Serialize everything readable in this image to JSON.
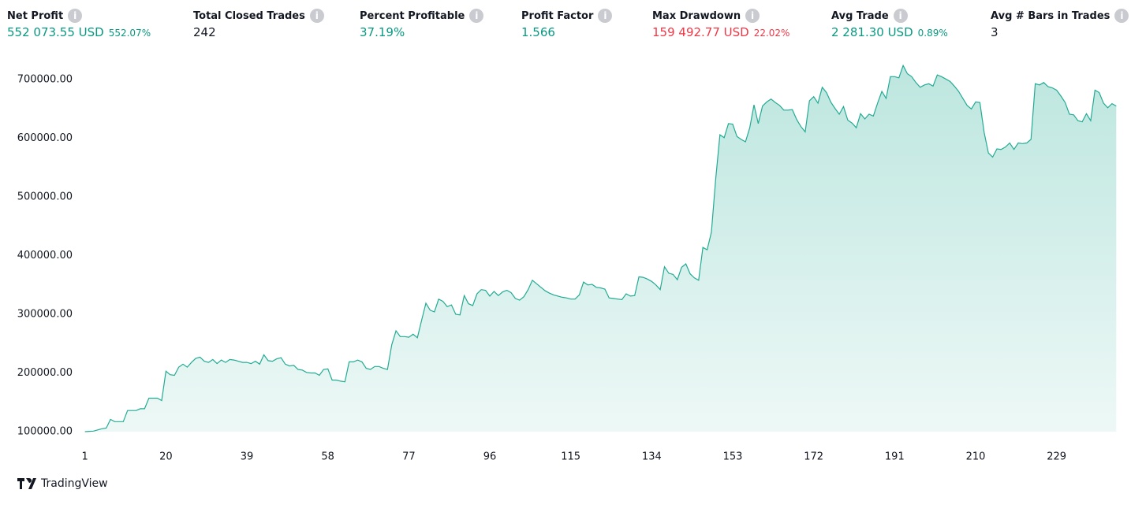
{
  "stats": [
    {
      "label": "Net Profit",
      "value": "552 073.55 USD",
      "percent": "552.07%",
      "color": "#089981"
    },
    {
      "label": "Total Closed Trades",
      "value": "242",
      "color": "#131722"
    },
    {
      "label": "Percent Profitable",
      "value": "37.19%",
      "color": "#089981"
    },
    {
      "label": "Profit Factor",
      "value": "1.566",
      "color": "#089981"
    },
    {
      "label": "Max Drawdown",
      "value": "159 492.77 USD",
      "percent": "22.02%",
      "color": "#f23645"
    },
    {
      "label": "Avg Trade",
      "value": "2 281.30 USD",
      "percent": "0.89%",
      "color": "#089981"
    },
    {
      "label": "Avg # Bars in Trades",
      "value": "3",
      "color": "#131722"
    }
  ],
  "footer": "TradingView",
  "chart_data": {
    "type": "area",
    "color": "#22ab94",
    "x": [
      1,
      2,
      3,
      4,
      5,
      6,
      7,
      8,
      9,
      10,
      11,
      12,
      13,
      14,
      15,
      16,
      17,
      18,
      19,
      20,
      21,
      22,
      23,
      24,
      25,
      26,
      27,
      28,
      29,
      30,
      31,
      32,
      33,
      34,
      35,
      36,
      37,
      38,
      39,
      40,
      41,
      42,
      43,
      44,
      45,
      46,
      47,
      48,
      49,
      50,
      51,
      52,
      53,
      54,
      55,
      56,
      57,
      58,
      59,
      60,
      61,
      62,
      63,
      64,
      65,
      66,
      67,
      68,
      69,
      70,
      71,
      72,
      73,
      74,
      75,
      76,
      77,
      78,
      79,
      80,
      81,
      82,
      83,
      84,
      85,
      86,
      87,
      88,
      89,
      90,
      91,
      92,
      93,
      94,
      95,
      96,
      97,
      98,
      99,
      100,
      101,
      102,
      103,
      104,
      105,
      106,
      107,
      108,
      109,
      110,
      111,
      112,
      113,
      114,
      115,
      116,
      117,
      118,
      119,
      120,
      121,
      122,
      123,
      124,
      125,
      126,
      127,
      128,
      129,
      130,
      131,
      132,
      133,
      134,
      135,
      136,
      137,
      138,
      139,
      140,
      141,
      142,
      143,
      144,
      145,
      146,
      147,
      148,
      149,
      150,
      151,
      152,
      153,
      154,
      155,
      156,
      157,
      158,
      159,
      160,
      161,
      162,
      163,
      164,
      165,
      166,
      167,
      168,
      169,
      170,
      171,
      172,
      173,
      174,
      175,
      176,
      177,
      178,
      179,
      180,
      181,
      182,
      183,
      184,
      185,
      186,
      187,
      188,
      189,
      190,
      191,
      192,
      193,
      194,
      195,
      196,
      197,
      198,
      199,
      200,
      201,
      202,
      203,
      204,
      205,
      206,
      207,
      208,
      209,
      210,
      211,
      212,
      213,
      214,
      215,
      216,
      217,
      218,
      219,
      220,
      221,
      222,
      223,
      224,
      225,
      226,
      227,
      228,
      229,
      230,
      231,
      232,
      233,
      234,
      235,
      236,
      237,
      238,
      239,
      240,
      241,
      242,
      243
    ],
    "values": [
      100000,
      100500,
      101000,
      103000,
      105000,
      106000,
      121000,
      117000,
      117000,
      117000,
      136000,
      136000,
      136000,
      139000,
      139000,
      157000,
      157000,
      157000,
      153000,
      203000,
      197000,
      196000,
      210000,
      215000,
      210000,
      218000,
      225000,
      227000,
      220000,
      218000,
      223000,
      216000,
      222000,
      218000,
      223000,
      222000,
      220000,
      218000,
      218000,
      216000,
      220000,
      215000,
      231000,
      221000,
      220000,
      224000,
      226000,
      215000,
      212000,
      213000,
      206000,
      205000,
      201000,
      200000,
      200000,
      196000,
      206000,
      207000,
      188000,
      188000,
      186000,
      185000,
      219000,
      219000,
      222000,
      219000,
      208000,
      206000,
      211000,
      211000,
      208000,
      206000,
      248000,
      272000,
      262000,
      262000,
      261000,
      266000,
      260000,
      290000,
      319000,
      307000,
      304000,
      326000,
      322000,
      313000,
      316000,
      300000,
      299000,
      332000,
      318000,
      315000,
      335000,
      342000,
      341000,
      331000,
      339000,
      332000,
      338000,
      341000,
      337000,
      327000,
      324000,
      330000,
      342000,
      358000,
      352000,
      346000,
      340000,
      336000,
      333000,
      331000,
      329000,
      328000,
      326000,
      326000,
      333000,
      355000,
      350000,
      351000,
      346000,
      345000,
      343000,
      328000,
      327000,
      326000,
      325000,
      335000,
      331000,
      332000,
      364000,
      363000,
      360000,
      356000,
      350000,
      342000,
      381000,
      370000,
      368000,
      359000,
      380000,
      386000,
      369000,
      362000,
      358000,
      414000,
      410000,
      440000,
      530000,
      606000,
      601000,
      625000,
      624000,
      603000,
      598000,
      594000,
      618000,
      657000,
      625000,
      655000,
      662000,
      667000,
      661000,
      656000,
      648000,
      648000,
      649000,
      632000,
      620000,
      611000,
      664000,
      671000,
      660000,
      687000,
      678000,
      662000,
      651000,
      641000,
      654000,
      631000,
      626000,
      618000,
      642000,
      633000,
      641000,
      638000,
      660000,
      680000,
      668000,
      705000,
      705000,
      703000,
      724000,
      710000,
      705000,
      695000,
      687000,
      691000,
      693000,
      689000,
      708000,
      705000,
      701000,
      697000,
      689000,
      680000,
      668000,
      656000,
      650000,
      662000,
      661000,
      610000,
      575000,
      568000,
      582000,
      581000,
      585000,
      592000,
      581000,
      592000,
      591000,
      592000,
      598000,
      693000,
      691000,
      695000,
      688000,
      686000,
      682000,
      672000,
      661000,
      641000,
      640000,
      630000,
      628000,
      642000,
      630000,
      682000,
      678000,
      660000,
      652000,
      659000,
      655000
    ],
    "xlim": [
      0.5,
      243.5
    ],
    "xticks": [
      1,
      20,
      39,
      58,
      77,
      96,
      115,
      134,
      153,
      172,
      191,
      210,
      229
    ],
    "ylim": [
      100000,
      735000
    ],
    "yticks": [
      {
        "value": 100000,
        "label": "100000.00"
      },
      {
        "value": 200000,
        "label": "200000.00"
      },
      {
        "value": 300000,
        "label": "300000.00"
      },
      {
        "value": 400000,
        "label": "400000.00"
      },
      {
        "value": 500000,
        "label": "500000.00"
      },
      {
        "value": 600000,
        "label": "600000.00"
      },
      {
        "value": 700000,
        "label": "700000.00"
      }
    ]
  }
}
